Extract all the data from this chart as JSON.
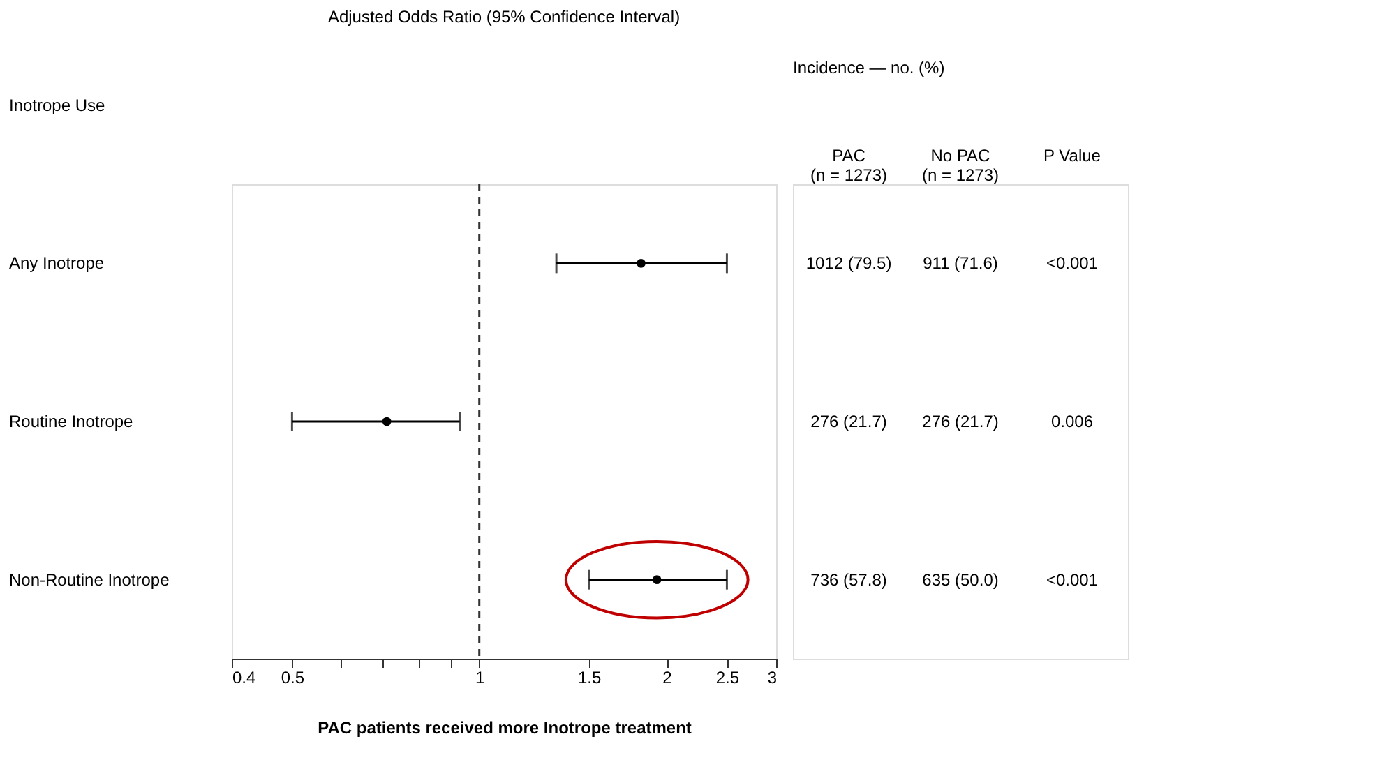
{
  "chart_data": [
    {
      "type": "scatter",
      "title": "Adjusted Odds Ratio (95% Confidence Interval)",
      "ylabel": "Inotrope Use",
      "xlabel": "PAC patients received more Inotrope treatment",
      "categories": [
        "Any Inotrope",
        "Routine Inotrope",
        "Non-Routine Inotrope"
      ],
      "values": [
        1.82,
        0.71,
        1.93
      ],
      "errors": [
        [
          1.33,
          2.5
        ],
        [
          0.5,
          0.93
        ],
        [
          1.5,
          2.5
        ]
      ],
      "color": "#000000",
      "marker": "circle",
      "log": "x",
      "orientation": "horizontal",
      "xlim": [
        0.4,
        3
      ],
      "xticks": [
        0.4,
        0.5,
        {
          "value": 0.6,
          "label": null
        },
        {
          "value": 0.7,
          "label": null
        },
        {
          "value": 0.8,
          "label": null
        },
        {
          "value": 0.9,
          "label": null
        },
        1,
        1.5,
        2,
        2.5,
        3
      ],
      "ref_lines": [
        {
          "axis": "x",
          "value": 1,
          "line_style": "dashed",
          "color": "#333333"
        }
      ],
      "grid": false
    },
    {
      "type": "other",
      "title": "Incidence — no. (%)",
      "annotations": [
        "PAC\n(n = 1273)",
        "No PAC\n(n = 1273)",
        "P Value",
        "1012 (79.5)",
        "911 (71.6)",
        "<0.001",
        "276 (21.7)",
        "276 (21.7)",
        "0.006",
        "736 (57.8)",
        "635 (50.0)",
        "<0.001"
      ]
    }
  ]
}
